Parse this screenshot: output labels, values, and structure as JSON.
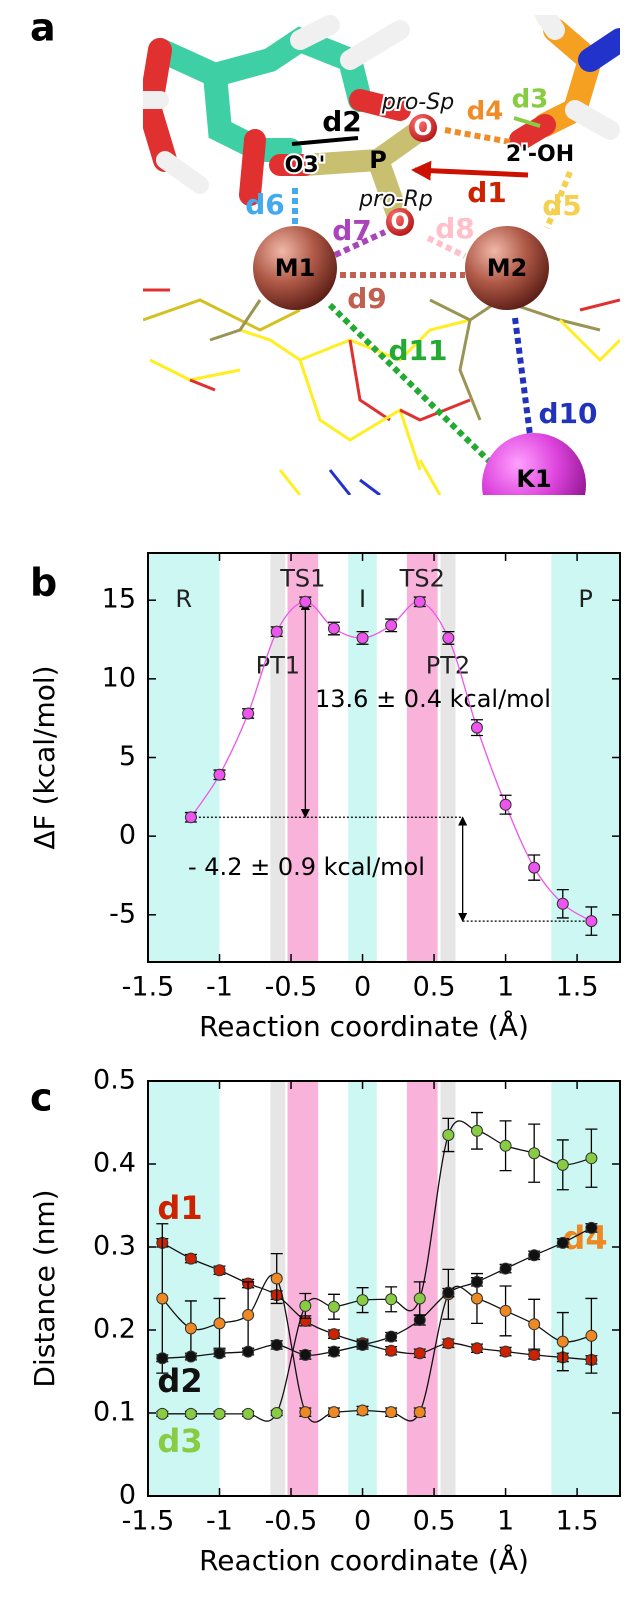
{
  "panel_a": {
    "label": "a",
    "labels": [
      "pro-Sp",
      "d4",
      "d3",
      "d2",
      "O",
      "2'-OH",
      "O3'",
      "P",
      "d1",
      "pro-Rp",
      "d5",
      "d6",
      "d7",
      "d8",
      "O",
      "M1",
      "M2",
      "d9",
      "d11",
      "d10",
      "K1"
    ]
  },
  "chart_data": [
    {
      "type": "line",
      "panel_label": "b",
      "xlabel": "Reaction coordinate (Å)",
      "ylabel": "ΔF (kcal/mol)",
      "xlim": [
        -1.5,
        1.8
      ],
      "ylim": [
        -8,
        18
      ],
      "xticks": [
        -1.5,
        -1,
        -0.5,
        0,
        0.5,
        1,
        1.5
      ],
      "yticks": [
        -5,
        0,
        5,
        10,
        15
      ],
      "regions": [
        {
          "from": -1.5,
          "to": -1.0,
          "color": "#cdf7f2",
          "label": "R"
        },
        {
          "from": -0.645,
          "to": -0.54,
          "color": "#e6e6e6",
          "label": "PT1"
        },
        {
          "from": -0.525,
          "to": -0.31,
          "color": "#f9b3da",
          "label": "TS1"
        },
        {
          "from": -0.1,
          "to": 0.1,
          "color": "#cdf7f2",
          "label": "I"
        },
        {
          "from": 0.31,
          "to": 0.525,
          "color": "#f9b3da",
          "label": "TS2"
        },
        {
          "from": 0.545,
          "to": 0.65,
          "color": "#e6e6e6",
          "label": "PT2"
        },
        {
          "from": 1.32,
          "to": 1.8,
          "color": "#cdf7f2",
          "label": "P"
        }
      ],
      "x": [
        -1.2,
        -1.0,
        -0.8,
        -0.6,
        -0.4,
        -0.2,
        0,
        0.2,
        0.4,
        0.6,
        0.8,
        1.0,
        1.2,
        1.4,
        1.6
      ],
      "series": [
        {
          "color": "#ee55ee",
          "values": [
            1.2,
            3.9,
            7.8,
            13.0,
            14.9,
            13.2,
            12.6,
            13.4,
            14.9,
            12.6,
            6.9,
            2.0,
            -2.0,
            -4.3,
            -5.4
          ],
          "errors": [
            0.3,
            0.3,
            0.3,
            0.3,
            0.3,
            0.4,
            0.4,
            0.4,
            0.3,
            0.4,
            0.5,
            0.6,
            0.8,
            0.9,
            0.9
          ]
        }
      ],
      "annotations": [
        "13.6 ± 0.4 kcal/mol",
        "- 4.2 ± 0.9 kcal/mol"
      ]
    },
    {
      "type": "line",
      "panel_label": "c",
      "xlabel": "Reaction coordinate (Å)",
      "ylabel": "Distance (nm)",
      "xlim": [
        -1.5,
        1.8
      ],
      "ylim": [
        0,
        0.5
      ],
      "xticks": [
        -1.5,
        -1,
        -0.5,
        0,
        0.5,
        1,
        1.5
      ],
      "yticks": [
        0,
        0.1,
        0.2,
        0.3,
        0.4,
        0.5
      ],
      "line_color": "#111111",
      "regions": [
        {
          "from": -1.5,
          "to": -1.0,
          "color": "#cdf7f2"
        },
        {
          "from": -0.645,
          "to": -0.54,
          "color": "#e6e6e6"
        },
        {
          "from": -0.525,
          "to": -0.31,
          "color": "#f9b3da"
        },
        {
          "from": -0.1,
          "to": 0.1,
          "color": "#cdf7f2"
        },
        {
          "from": 0.31,
          "to": 0.525,
          "color": "#f9b3da"
        },
        {
          "from": 0.545,
          "to": 0.65,
          "color": "#e6e6e6"
        },
        {
          "from": 1.32,
          "to": 1.8,
          "color": "#cdf7f2"
        }
      ],
      "x": [
        -1.4,
        -1.2,
        -1.0,
        -0.8,
        -0.6,
        -0.4,
        -0.2,
        0,
        0.2,
        0.4,
        0.6,
        0.8,
        1.0,
        1.2,
        1.4,
        1.6
      ],
      "series": [
        {
          "name": "d1",
          "color": "#cc2200",
          "values": [
            0.305,
            0.286,
            0.272,
            0.256,
            0.242,
            0.211,
            0.195,
            0.184,
            0.175,
            0.172,
            0.184,
            0.178,
            0.174,
            0.17,
            0.167,
            0.164
          ],
          "errors": [
            0.005,
            0.005,
            0.005,
            0.005,
            0.005,
            0.006,
            0.005,
            0.005,
            0.005,
            0.005,
            0.005,
            0.005,
            0.005,
            0.005,
            0.005,
            0.005
          ]
        },
        {
          "name": "d4",
          "color": "#ee8822",
          "values": [
            0.238,
            0.202,
            0.208,
            0.218,
            0.262,
            0.101,
            0.101,
            0.103,
            0.101,
            0.101,
            0.243,
            0.238,
            0.223,
            0.207,
            0.186,
            0.193
          ],
          "errors": [
            0.09,
            0.033,
            0.03,
            0.04,
            0.03,
            0.005,
            0.005,
            0.005,
            0.005,
            0.005,
            0.03,
            0.03,
            0.03,
            0.03,
            0.035,
            0.045
          ]
        },
        {
          "name": "d2",
          "color": "#111111",
          "values": [
            0.166,
            0.168,
            0.172,
            0.174,
            0.182,
            0.17,
            0.174,
            0.182,
            0.192,
            0.212,
            0.245,
            0.258,
            0.274,
            0.29,
            0.305,
            0.323
          ],
          "errors": [
            0.004,
            0.004,
            0.004,
            0.004,
            0.005,
            0.005,
            0.005,
            0.005,
            0.005,
            0.006,
            0.005,
            0.005,
            0.005,
            0.005,
            0.005,
            0.005
          ]
        },
        {
          "name": "d3",
          "color": "#88cc44",
          "values": [
            0.099,
            0.099,
            0.099,
            0.099,
            0.1,
            0.229,
            0.228,
            0.236,
            0.237,
            0.238,
            0.435,
            0.44,
            0.422,
            0.413,
            0.399,
            0.407
          ],
          "errors": [
            0.003,
            0.003,
            0.003,
            0.003,
            0.003,
            0.015,
            0.015,
            0.015,
            0.015,
            0.02,
            0.02,
            0.022,
            0.03,
            0.035,
            0.03,
            0.035
          ]
        }
      ]
    }
  ]
}
